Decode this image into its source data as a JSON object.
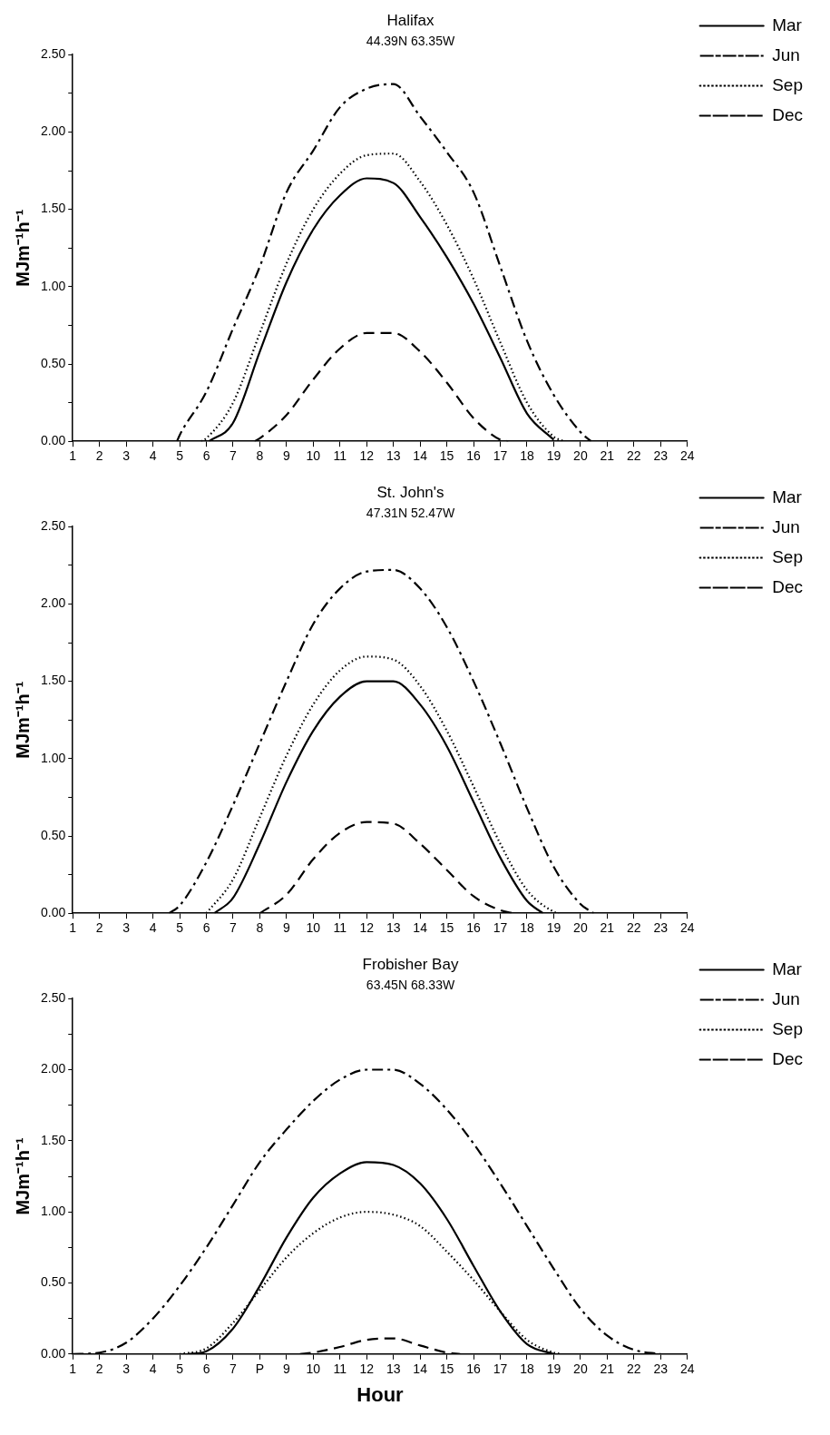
{
  "chart_data": [
    {
      "type": "line",
      "title": "Halifax",
      "subtitle": "44.39N 63.35W",
      "ylabel": "MJm⁻¹h⁻¹",
      "grid": false,
      "legend": "top right",
      "marker": "none",
      "xlim": [
        1,
        24
      ],
      "xticks": [
        1,
        2,
        3,
        4,
        5,
        6,
        7,
        8,
        9,
        10,
        11,
        12,
        13,
        14,
        15,
        16,
        17,
        18,
        19,
        20,
        21,
        22,
        23,
        24
      ],
      "ylim": [
        0,
        2.5
      ],
      "yticks": [
        {
          "value": 0,
          "label": "0.00"
        },
        {
          "value": 0.25,
          "label": null
        },
        {
          "value": 0.5,
          "label": "0.50"
        },
        {
          "value": 0.75,
          "label": null
        },
        {
          "value": 1,
          "label": "1.00"
        },
        {
          "value": 1.25,
          "label": null
        },
        {
          "value": 1.5,
          "label": "1.50"
        },
        {
          "value": 1.75,
          "label": null
        },
        {
          "value": 2,
          "label": "2.00"
        },
        {
          "value": 2.25,
          "label": null
        },
        {
          "value": 2.5,
          "label": "2.50"
        }
      ],
      "series": [
        {
          "name": "Mar",
          "color": "#000000",
          "line_style": "solid",
          "x": [
            6.1,
            7,
            8,
            9,
            10,
            11,
            12,
            13,
            14,
            15,
            16,
            17,
            18,
            19
          ],
          "values": [
            0,
            0.12,
            0.58,
            1.03,
            1.37,
            1.59,
            1.7,
            1.67,
            1.45,
            1.19,
            0.89,
            0.54,
            0.18,
            0.01
          ]
        },
        {
          "name": "Jun",
          "color": "#000000",
          "line_style": "dashdot",
          "x": [
            4.9,
            5,
            6,
            7,
            8,
            9,
            10,
            11,
            12,
            13,
            14,
            15,
            16,
            17,
            18,
            19,
            20,
            20.4
          ],
          "values": [
            0,
            0.04,
            0.32,
            0.73,
            1.13,
            1.61,
            1.88,
            2.16,
            2.28,
            2.31,
            2.1,
            1.87,
            1.61,
            1.13,
            0.65,
            0.3,
            0.06,
            0
          ]
        },
        {
          "name": "Sep",
          "color": "#000000",
          "line_style": "dotted",
          "x": [
            5.8,
            6,
            7,
            8,
            9,
            10,
            11,
            12,
            13,
            14,
            15,
            16,
            17,
            18,
            19,
            19.4
          ],
          "values": [
            0,
            0.02,
            0.25,
            0.7,
            1.15,
            1.5,
            1.73,
            1.85,
            1.86,
            1.68,
            1.4,
            1.05,
            0.64,
            0.25,
            0.03,
            0
          ]
        },
        {
          "name": "Dec",
          "color": "#000000",
          "line_style": "dashed",
          "x": [
            7.8,
            8,
            9,
            10,
            11,
            12,
            13,
            14,
            15,
            16,
            17,
            17.3
          ],
          "values": [
            0,
            0.02,
            0.17,
            0.4,
            0.6,
            0.7,
            0.7,
            0.58,
            0.38,
            0.15,
            0.01,
            0
          ]
        }
      ]
    },
    {
      "type": "line",
      "title": "St. John's",
      "subtitle": "47.31N 52.47W",
      "ylabel": "MJm⁻¹h⁻¹",
      "grid": false,
      "legend": "top right",
      "marker": "none",
      "xlim": [
        1,
        24
      ],
      "xticks": [
        1,
        2,
        3,
        4,
        5,
        6,
        7,
        8,
        9,
        10,
        11,
        12,
        13,
        14,
        15,
        16,
        17,
        18,
        19,
        20,
        21,
        22,
        23,
        24
      ],
      "ylim": [
        0,
        2.5
      ],
      "yticks": [
        {
          "value": 0,
          "label": "0.00"
        },
        {
          "value": 0.25,
          "label": null
        },
        {
          "value": 0.5,
          "label": "0.50"
        },
        {
          "value": 0.75,
          "label": null
        },
        {
          "value": 1,
          "label": "1.00"
        },
        {
          "value": 1.25,
          "label": null
        },
        {
          "value": 1.5,
          "label": "1.50"
        },
        {
          "value": 1.75,
          "label": null
        },
        {
          "value": 2,
          "label": "2.00"
        },
        {
          "value": 2.25,
          "label": null
        },
        {
          "value": 2.5,
          "label": "2.50"
        }
      ],
      "series": [
        {
          "name": "Mar",
          "color": "#000000",
          "line_style": "solid",
          "x": [
            6.3,
            7,
            8,
            9,
            10,
            11,
            12,
            13,
            14,
            15,
            16,
            17,
            18,
            18.6
          ],
          "values": [
            0,
            0.1,
            0.45,
            0.85,
            1.18,
            1.4,
            1.5,
            1.5,
            1.35,
            1.08,
            0.72,
            0.36,
            0.08,
            0
          ]
        },
        {
          "name": "Jun",
          "color": "#000000",
          "line_style": "dashdot",
          "x": [
            4.6,
            5,
            6,
            7,
            8,
            9,
            10,
            11,
            12,
            13,
            14,
            15,
            16,
            17,
            18,
            19,
            20,
            20.5
          ],
          "values": [
            0,
            0.05,
            0.33,
            0.7,
            1.1,
            1.5,
            1.87,
            2.1,
            2.21,
            2.22,
            2.1,
            1.85,
            1.5,
            1.1,
            0.68,
            0.3,
            0.06,
            0
          ]
        },
        {
          "name": "Sep",
          "color": "#000000",
          "line_style": "dotted",
          "x": [
            6,
            7,
            8,
            9,
            10,
            11,
            12,
            13,
            14,
            15,
            16,
            17,
            18,
            19,
            19.2
          ],
          "values": [
            0,
            0.22,
            0.62,
            1.02,
            1.35,
            1.57,
            1.66,
            1.64,
            1.47,
            1.18,
            0.82,
            0.45,
            0.15,
            0.01,
            0
          ]
        },
        {
          "name": "Dec",
          "color": "#000000",
          "line_style": "dashed",
          "x": [
            8,
            9,
            10,
            11,
            12,
            13,
            14,
            15,
            16,
            17,
            17.5
          ],
          "values": [
            0,
            0.12,
            0.35,
            0.52,
            0.59,
            0.58,
            0.45,
            0.28,
            0.11,
            0.02,
            0
          ]
        }
      ]
    },
    {
      "type": "line",
      "title": "Frobisher Bay",
      "subtitle": "63.45N 68.33W",
      "xlabel": "Hour",
      "ylabel": "MJm⁻¹h⁻¹",
      "grid": false,
      "legend": "top right",
      "marker": "none",
      "xlim": [
        1,
        24
      ],
      "xticks": [
        1,
        2,
        3,
        4,
        5,
        6,
        7,
        {
          "value": 8,
          "label": "P"
        },
        9,
        10,
        11,
        12,
        13,
        14,
        15,
        16,
        17,
        18,
        19,
        20,
        21,
        22,
        23,
        24
      ],
      "ylim": [
        0,
        2.5
      ],
      "yticks": [
        {
          "value": 0,
          "label": "0.00"
        },
        {
          "value": 0.25,
          "label": null
        },
        {
          "value": 0.5,
          "label": "0.50"
        },
        {
          "value": 0.75,
          "label": null
        },
        {
          "value": 1,
          "label": "1.00"
        },
        {
          "value": 1.25,
          "label": null
        },
        {
          "value": 1.5,
          "label": "1.50"
        },
        {
          "value": 1.75,
          "label": null
        },
        {
          "value": 2,
          "label": "2.00"
        },
        {
          "value": 2.25,
          "label": null
        },
        {
          "value": 2.5,
          "label": "2.50"
        }
      ],
      "series": [
        {
          "name": "Mar",
          "color": "#000000",
          "line_style": "solid",
          "x": [
            5.3,
            6,
            7,
            8,
            9,
            10,
            11,
            12,
            13,
            14,
            15,
            16,
            17,
            18,
            19
          ],
          "values": [
            0,
            0.02,
            0.18,
            0.48,
            0.82,
            1.1,
            1.27,
            1.35,
            1.33,
            1.2,
            0.95,
            0.62,
            0.3,
            0.07,
            0
          ]
        },
        {
          "name": "Jun",
          "color": "#000000",
          "line_style": "dashdot",
          "x": [
            1,
            2,
            3,
            4,
            5,
            6,
            7,
            8,
            9,
            10,
            11,
            12,
            13,
            14,
            15,
            16,
            17,
            18,
            19,
            20,
            21,
            22,
            23
          ],
          "values": [
            0,
            0.01,
            0.08,
            0.25,
            0.48,
            0.75,
            1.05,
            1.35,
            1.58,
            1.78,
            1.93,
            2.0,
            2.0,
            1.9,
            1.72,
            1.48,
            1.2,
            0.9,
            0.6,
            0.32,
            0.13,
            0.03,
            0
          ]
        },
        {
          "name": "Sep",
          "color": "#000000",
          "line_style": "dotted",
          "x": [
            5,
            6,
            7,
            8,
            9,
            10,
            11,
            12,
            13,
            14,
            15,
            16,
            17,
            18,
            19,
            19.3
          ],
          "values": [
            0,
            0.04,
            0.22,
            0.45,
            0.68,
            0.85,
            0.96,
            1.0,
            0.98,
            0.9,
            0.72,
            0.52,
            0.3,
            0.1,
            0.01,
            0
          ]
        },
        {
          "name": "Dec",
          "color": "#000000",
          "line_style": "dashed",
          "x": [
            9.5,
            10,
            11,
            12,
            13,
            14,
            15,
            15.5
          ],
          "values": [
            0,
            0.01,
            0.05,
            0.1,
            0.11,
            0.06,
            0.01,
            0
          ]
        }
      ]
    }
  ]
}
